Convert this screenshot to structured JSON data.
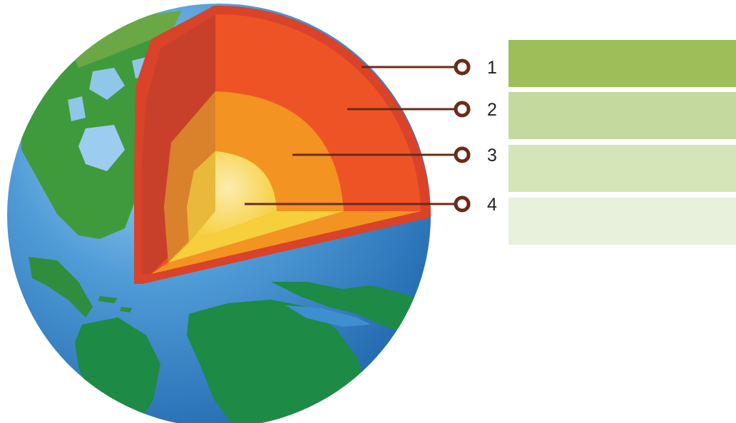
{
  "labels": [
    {
      "number": "1"
    },
    {
      "number": "2"
    },
    {
      "number": "3"
    },
    {
      "number": "4"
    }
  ],
  "colors": {
    "ocean": "#2f7ec4",
    "ocean_light": "#8fc5ec",
    "land": "#1d8a45",
    "land_light": "#5fa63a",
    "crust_edge": "#d8432a",
    "mantle": "#ee5326",
    "mantle_shadow": "#c9402a",
    "outer_core": "#f39321",
    "outer_core_shadow": "#d9822b",
    "inner_core": "#f8d64b",
    "inner_core_highlight": "#fbe79a",
    "leader_line": "#6b2a17",
    "box_1": "#9dbe59",
    "box_2": "#c3d99d",
    "box_3": "#d4e5b8",
    "box_4": "#e8f1dc"
  },
  "icons": [
    "earth-cutaway",
    "callout-ring"
  ]
}
